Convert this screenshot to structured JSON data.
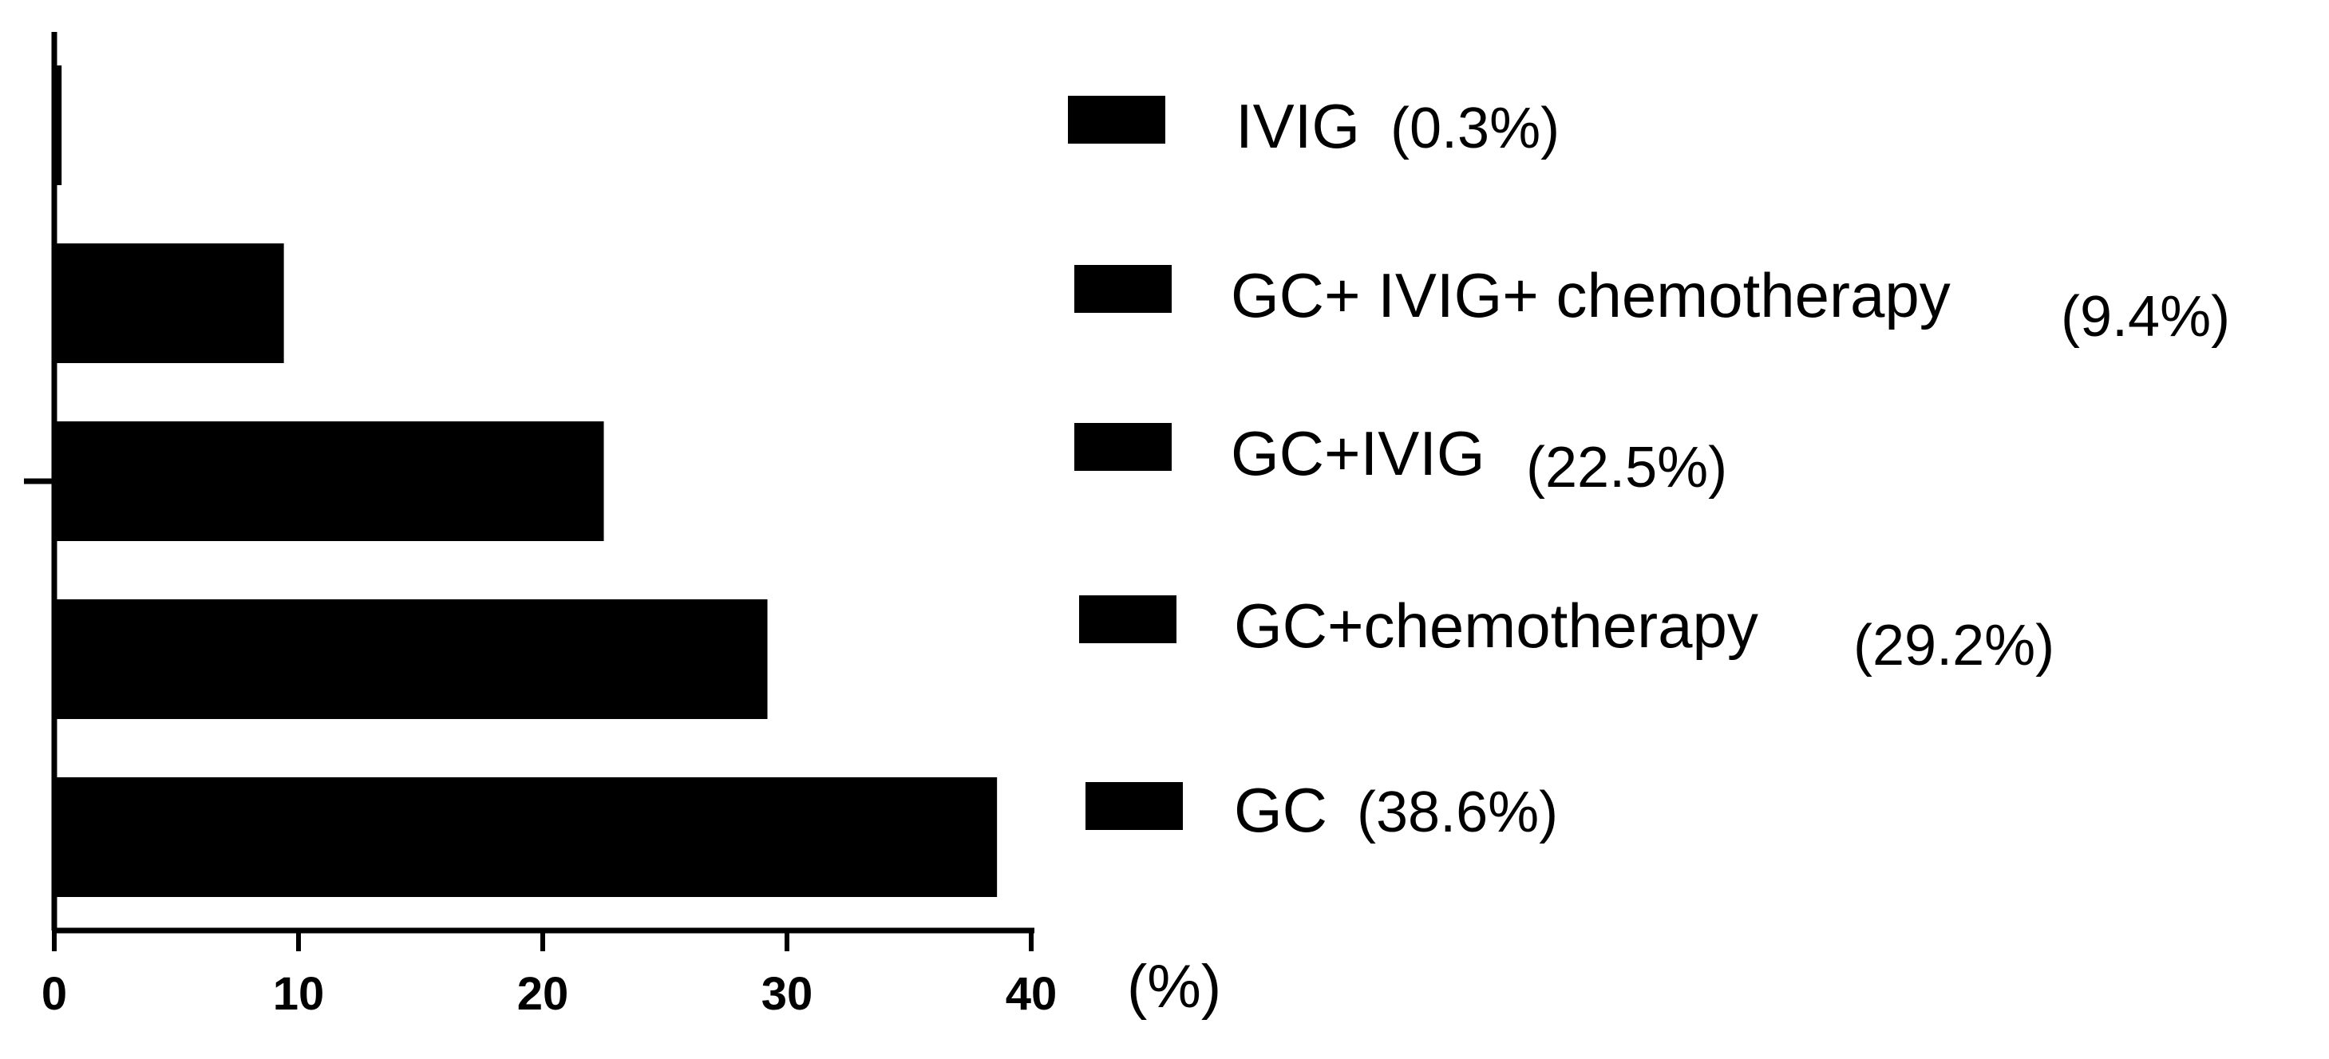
{
  "chart_data": {
    "type": "bar",
    "orientation": "horizontal",
    "categories": [
      "GC",
      "GC+chemotherapy",
      "GC+IVIG",
      "GC+ IVIG+ chemotherapy",
      "IVIG"
    ],
    "values": [
      38.6,
      29.2,
      22.5,
      9.4,
      0.3
    ],
    "legend_percent_labels": [
      "(38.6%)",
      "(29.2%)",
      "(22.5%)",
      "(9.4%)",
      "(0.3%)"
    ],
    "xlim": [
      0,
      40
    ],
    "x_ticks": [
      "0",
      "10",
      "20",
      "30",
      "40"
    ],
    "x_unit": "(%)",
    "title": "",
    "ylabel": "",
    "bar_color": "#000000",
    "grid": false,
    "legend_position": "right"
  }
}
